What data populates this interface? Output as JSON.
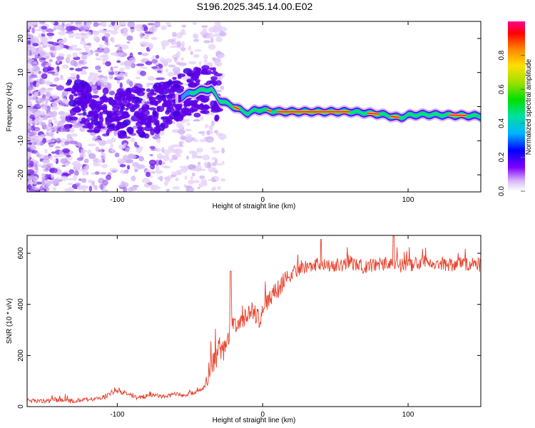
{
  "title": "S196.2025.345.14.00.E02",
  "colors": {
    "snr_line": "#e8402a",
    "background_speckle": "#b788f0",
    "ridge_fill": "#5e00e8",
    "ridge_mid": "#1e9bff",
    "ridge_core": "#00e46c",
    "ridge_peak": "#ff3030"
  },
  "chart_data": [
    {
      "type": "heatmap",
      "name": "spectrogram",
      "title": "S196.2025.345.14.00.E02",
      "xlabel": "Height of straight line (km)",
      "ylabel": "Frequency (Hz)",
      "xlim": [
        -162,
        150
      ],
      "ylim": [
        -25,
        25
      ],
      "xticks": [
        -100,
        0,
        100
      ],
      "yticks": [
        20,
        10,
        0,
        -10,
        -20
      ],
      "colorbar": {
        "label": "Normalized spectral amplitude",
        "range": [
          0,
          1
        ],
        "ticks": [
          "0.0",
          "0.2",
          "0.4",
          "0.6",
          "0.8"
        ],
        "colormap": [
          "#ffffff",
          "#d8b8f8",
          "#8000ff",
          "#0000ff",
          "#00b4ff",
          "#00e0a0",
          "#00e000",
          "#a0e000",
          "#ffe000",
          "#ff8000",
          "#ff0000",
          "#ff0090"
        ]
      },
      "ridge": {
        "description": "Frequency of strongest signal vs height",
        "x": [
          -162,
          -140,
          -120,
          -100,
          -90,
          -80,
          -70,
          -60,
          -50,
          -40,
          -35,
          -30,
          -25,
          -20,
          -15,
          -10,
          -5,
          0,
          10,
          20,
          30,
          40,
          50,
          60,
          70,
          80,
          85,
          90,
          95,
          100,
          110,
          120,
          130,
          140,
          150
        ],
        "y": [
          0,
          1,
          0,
          -2,
          -1,
          -2,
          0,
          2,
          4,
          5,
          5,
          2,
          1,
          0,
          -1,
          -2,
          -1,
          -1,
          -1.5,
          -1.5,
          -1.5,
          -1.5,
          -1.5,
          -1.5,
          -1.8,
          -2.2,
          -2.5,
          -3,
          -3.2,
          -2.5,
          -2.3,
          -2.4,
          -2.5,
          -2.6,
          -2.8
        ]
      }
    },
    {
      "type": "line",
      "name": "snr",
      "xlabel": "Height of straight line (km)",
      "ylabel": "SNR (10 * v/v)",
      "xlim": [
        -162,
        150
      ],
      "ylim": [
        0,
        670
      ],
      "xticks": [
        -100,
        0,
        100
      ],
      "yticks": [
        0,
        200,
        400,
        600
      ],
      "series": [
        {
          "name": "SNR",
          "x": [
            -162,
            -150,
            -140,
            -130,
            -120,
            -110,
            -100,
            -95,
            -90,
            -85,
            -80,
            -75,
            -70,
            -65,
            -60,
            -55,
            -50,
            -45,
            -40,
            -38,
            -35,
            -32,
            -30,
            -28,
            -25,
            -22,
            -20,
            -18,
            -15,
            -12,
            -10,
            -8,
            -5,
            -2,
            0,
            2,
            5,
            8,
            10,
            12,
            15,
            18,
            20,
            25,
            30,
            35,
            40,
            45,
            50,
            60,
            70,
            80,
            90,
            100,
            110,
            120,
            130,
            140,
            150
          ],
          "y": [
            25,
            22,
            25,
            22,
            28,
            35,
            60,
            55,
            40,
            35,
            40,
            45,
            40,
            40,
            50,
            45,
            50,
            60,
            75,
            120,
            150,
            180,
            250,
            210,
            240,
            300,
            330,
            300,
            340,
            350,
            360,
            380,
            360,
            340,
            380,
            400,
            420,
            460,
            440,
            470,
            500,
            510,
            520,
            540,
            550,
            555,
            560,
            555,
            550,
            560,
            545,
            560,
            555,
            550,
            570,
            560,
            555,
            560,
            555
          ],
          "spikes": [
            {
              "x": -22,
              "y": 530
            },
            {
              "x": 40,
              "y": 655
            },
            {
              "x": 90,
              "y": 668
            }
          ]
        }
      ]
    }
  ]
}
